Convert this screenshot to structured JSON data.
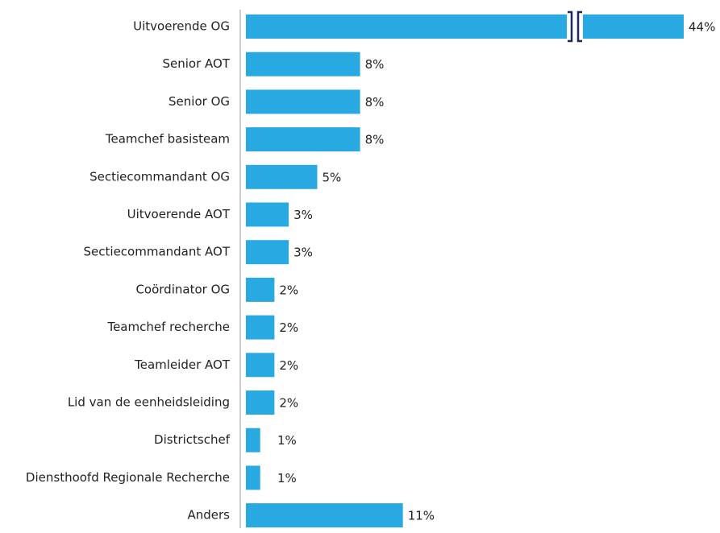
{
  "chart_data": {
    "type": "bar",
    "orientation": "horizontal",
    "color": "#29a9e1",
    "categories": [
      "Uitvoerende OG",
      "Senior AOT",
      "Senior OG",
      "Teamchef basisteam",
      "Sectiecommandant OG",
      "Uitvoerende AOT",
      "Sectiecommandant AOT",
      "Coördinator OG",
      "Teamchef recherche",
      "Teamleider AOT",
      "Lid van de eenheidsleiding",
      "Districtschef",
      "Diensthoofd Regionale Recherche",
      "Anders"
    ],
    "values": [
      44,
      8,
      8,
      8,
      5,
      3,
      3,
      2,
      2,
      2,
      2,
      1,
      1,
      11
    ],
    "value_labels": [
      "44%",
      "8%",
      "8%",
      "8%",
      "5%",
      "3%",
      "3%",
      "2%",
      "2%",
      "2%",
      "2%",
      "1%",
      "1%",
      "11%"
    ]
  }
}
